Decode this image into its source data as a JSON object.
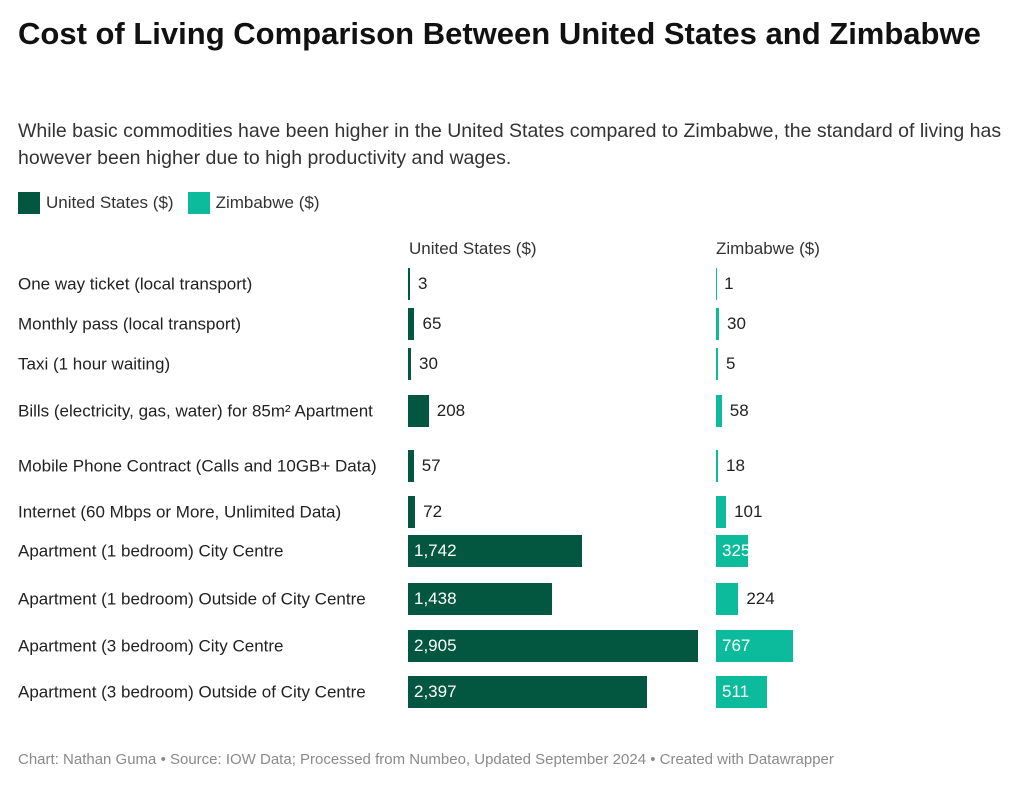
{
  "title": "Cost of Living Comparison Between United States and Zimbabwe",
  "subtitle": "While basic commodities have been higher in the United States compared to Zimbabwe, the standard of living has however been higher due to high productivity and wages.",
  "footer": "Chart: Nathan Guma  • Source: IOW Data; Processed from Numbeo, Updated September 2024 • Created with Datawrapper",
  "chart_data": {
    "type": "bar",
    "orientation": "horizontal",
    "legend_position": "top-left",
    "categories": [
      "One way ticket (local transport)",
      "Monthly pass (local transport)",
      "Taxi (1 hour waiting)",
      "Bills (electricity, gas, water) for 85m² Apartment",
      "Mobile Phone Contract (Calls and 10GB+ Data)",
      "Internet (60 Mbps or More, Unlimited Data)",
      "Apartment (1 bedroom) City Centre",
      "Apartment (1 bedroom) Outside of City Centre",
      "Apartment (3 bedroom) City Centre",
      "Apartment (3 bedroom) Outside of City Centre"
    ],
    "series": [
      {
        "name": "United States ($)",
        "color": "#03563f",
        "values": [
          3,
          65,
          30,
          208,
          57,
          72,
          1742,
          1438,
          2905,
          2397
        ],
        "labels": [
          "3",
          "65",
          "30",
          "208",
          "57",
          "72",
          "1,742",
          "1,438",
          "2,905",
          "2,397"
        ]
      },
      {
        "name": "Zimbabwe ($)",
        "color": "#0cbb9b",
        "values": [
          1,
          30,
          5,
          58,
          18,
          101,
          325,
          224,
          767,
          511
        ],
        "labels": [
          "1",
          "30",
          "5",
          "58",
          "18",
          "101",
          "325",
          "224",
          "767",
          "511"
        ]
      }
    ]
  }
}
